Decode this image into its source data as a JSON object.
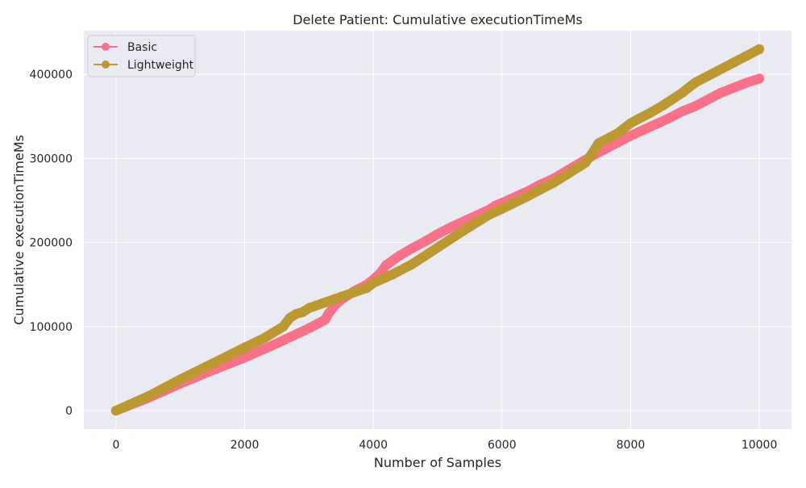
{
  "chart_data": {
    "type": "line",
    "title": "Delete Patient: Cumulative executionTimeMs",
    "xlabel": "Number of Samples",
    "ylabel": "Cumulative executionTimeMs",
    "xlim": [
      -500,
      10500
    ],
    "ylim": [
      -22000,
      452000
    ],
    "xticks": [
      0,
      2000,
      4000,
      6000,
      8000,
      10000
    ],
    "yticks": [
      0,
      100000,
      200000,
      300000,
      400000
    ],
    "grid": true,
    "legend_position": "top-left",
    "colors": {
      "background": "#eaeaf2",
      "grid": "#ffffff",
      "Basic": "#f77189",
      "Lightweight": "#bb9832"
    },
    "series": [
      {
        "name": "Basic",
        "color": "#f77189",
        "x": [
          0,
          500,
          1000,
          1500,
          2000,
          2500,
          3000,
          3250,
          3300,
          3400,
          3500,
          3700,
          3900,
          4000,
          4100,
          4200,
          4400,
          4600,
          4800,
          5000,
          5200,
          5400,
          5600,
          5800,
          5900,
          6000,
          6200,
          6400,
          6600,
          6800,
          7000,
          7200,
          7400,
          7600,
          7800,
          8000,
          8200,
          8400,
          8600,
          8800,
          9000,
          9200,
          9400,
          9600,
          9800,
          10000
        ],
        "y": [
          0,
          15000,
          32000,
          48000,
          63000,
          80000,
          98000,
          108000,
          115000,
          125000,
          132000,
          142000,
          150000,
          156000,
          163000,
          173000,
          184000,
          193000,
          201000,
          210000,
          218000,
          225000,
          232000,
          239000,
          244000,
          247000,
          254000,
          261000,
          269000,
          276000,
          285000,
          294000,
          303000,
          311000,
          319000,
          327000,
          334000,
          341000,
          348000,
          356000,
          362000,
          370000,
          378000,
          384000,
          390000,
          395000
        ]
      },
      {
        "name": "Lightweight",
        "color": "#bb9832",
        "x": [
          0,
          500,
          1000,
          1500,
          2000,
          2300,
          2600,
          2700,
          2800,
          2900,
          3000,
          3300,
          3600,
          3900,
          4000,
          4300,
          4600,
          5000,
          5400,
          5800,
          6000,
          6400,
          6800,
          7200,
          7300,
          7400,
          7500,
          7800,
          8000,
          8300,
          8500,
          8800,
          9000,
          9300,
          9600,
          9800,
          10000
        ],
        "y": [
          0,
          17000,
          37000,
          56000,
          75000,
          86000,
          100000,
          110000,
          115000,
          117000,
          122000,
          130000,
          138000,
          146000,
          152000,
          162000,
          174000,
          194000,
          214000,
          233000,
          240000,
          255000,
          271000,
          290000,
          295000,
          306000,
          318000,
          330000,
          342000,
          354000,
          363000,
          378000,
          390000,
          402000,
          414000,
          422000,
          430000
        ]
      }
    ]
  }
}
